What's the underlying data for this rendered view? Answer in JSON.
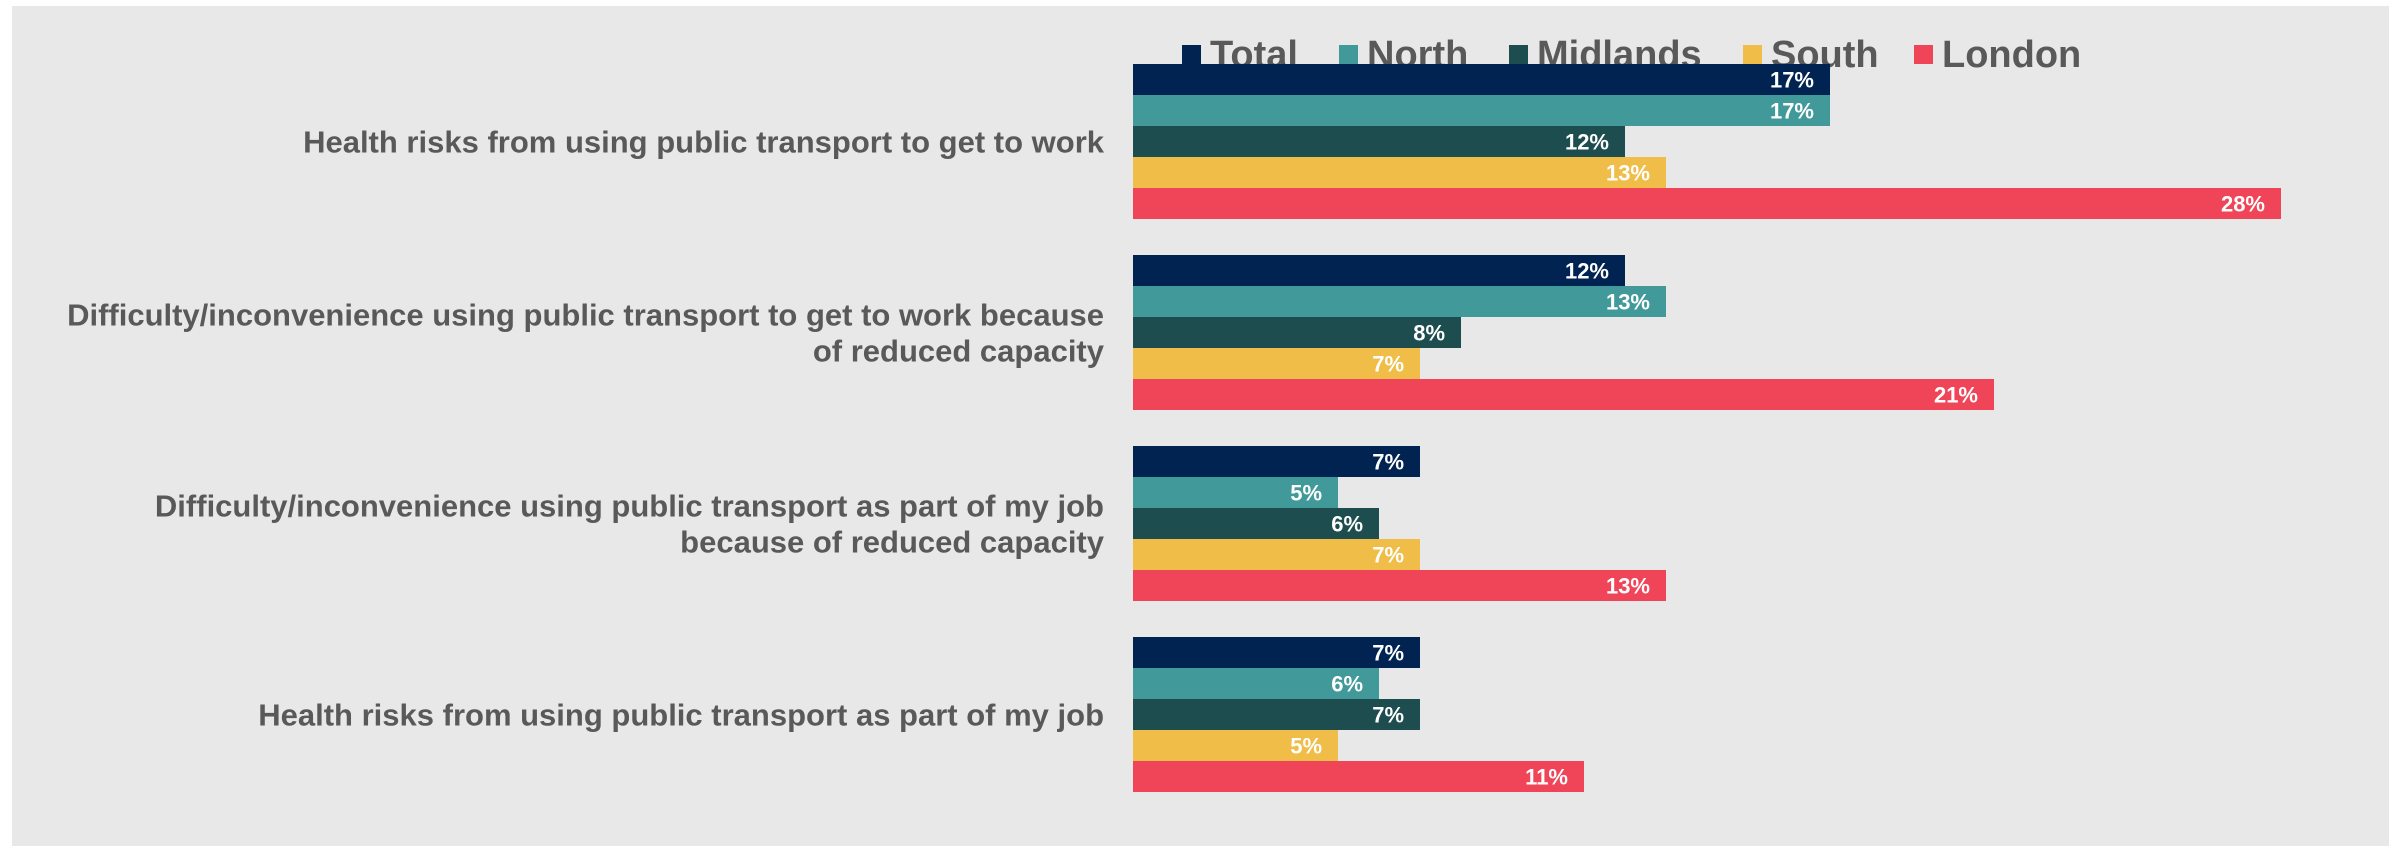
{
  "chart_data": {
    "type": "bar",
    "orientation": "horizontal",
    "title": "",
    "xlabel": "",
    "ylabel": "",
    "legend_position": "top",
    "grid": false,
    "value_suffix": "%",
    "xlim": [
      0,
      30
    ],
    "categories": [
      [
        "Health risks from using public transport to get to work"
      ],
      [
        "Difficulty/inconvenience using public transport to get to work because",
        "of reduced capacity"
      ],
      [
        "Difficulty/inconvenience using public transport as part of my job",
        "because of reduced capacity"
      ],
      [
        "Health risks from using public transport as part of my job"
      ]
    ],
    "series": [
      {
        "name": "Total",
        "color": "#002352",
        "values": [
          17,
          12,
          7,
          7
        ]
      },
      {
        "name": "North",
        "color": "#41999a",
        "values": [
          17,
          13,
          5,
          6
        ]
      },
      {
        "name": "Midlands",
        "color": "#1e4d4f",
        "values": [
          12,
          8,
          6,
          7
        ]
      },
      {
        "name": "South",
        "color": "#f0bd48",
        "values": [
          13,
          7,
          7,
          5
        ]
      },
      {
        "name": "London",
        "color": "#f04458",
        "values": [
          28,
          21,
          13,
          11
        ]
      }
    ]
  },
  "colors": {
    "panel_background": "#e8e8e8",
    "label_text": "#595959",
    "bar_label_text": "#ffffff"
  }
}
